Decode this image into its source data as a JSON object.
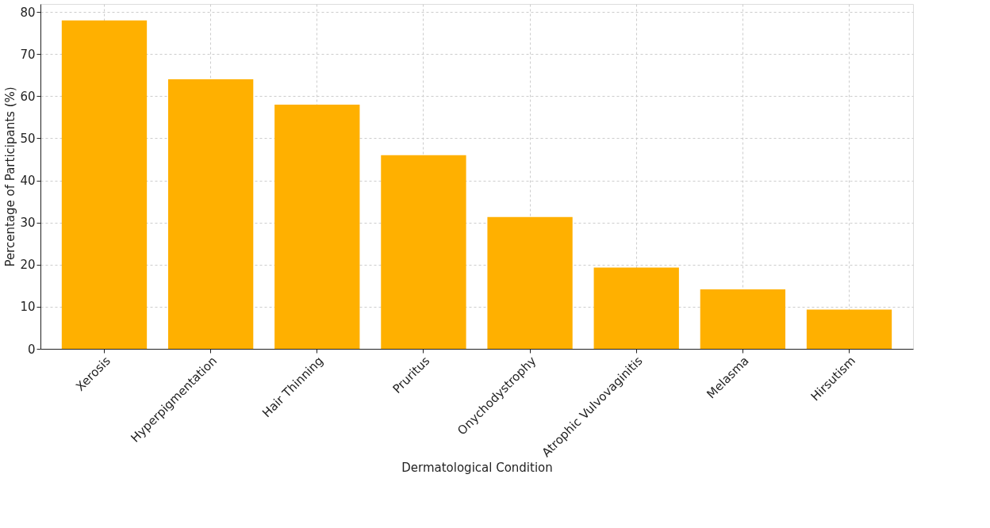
{
  "chart_data": {
    "type": "bar",
    "xlabel": "Dermatological Condition",
    "ylabel": "Percentage of Participants (%)",
    "categories": [
      "Xerosis",
      "Hyperpigmentation",
      "Hair Thinning",
      "Pruritus",
      "Onychodystrophy",
      "Atrophic Vulvovaginitis",
      "Melasma",
      "Hirsutism"
    ],
    "series": [
      {
        "color": "#ffb000",
        "values": [
          78,
          64,
          58,
          46,
          31.3,
          19.3,
          14.1,
          9.3
        ]
      }
    ],
    "ylim": [
      0,
      81.9
    ],
    "yticks": [
      0,
      10,
      20,
      30,
      40,
      50,
      60,
      70,
      80
    ],
    "grid": true
  }
}
